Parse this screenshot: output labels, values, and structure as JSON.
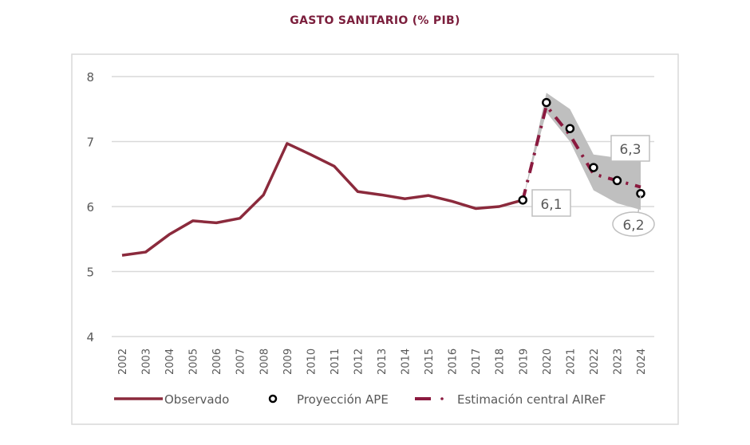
{
  "chart_data": {
    "type": "line",
    "title": "GASTO SANITARIO (% PIB)",
    "xlabel": "",
    "ylabel": "",
    "ylim": [
      4,
      8
    ],
    "yticks": [
      "4",
      "5",
      "6",
      "7",
      "8"
    ],
    "grid": true,
    "legend_position": "bottom",
    "x": [
      "2002",
      "2003",
      "2004",
      "2005",
      "2006",
      "2007",
      "2008",
      "2009",
      "2010",
      "2011",
      "2012",
      "2013",
      "2014",
      "2015",
      "2016",
      "2017",
      "2018",
      "2019",
      "2020",
      "2021",
      "2022",
      "2023",
      "2024"
    ],
    "series": [
      {
        "name": "Observado",
        "style": "solid-line",
        "color": "#8b2a3c",
        "x": [
          "2002",
          "2003",
          "2004",
          "2005",
          "2006",
          "2007",
          "2008",
          "2009",
          "2010",
          "2011",
          "2012",
          "2013",
          "2014",
          "2015",
          "2016",
          "2017",
          "2018",
          "2019"
        ],
        "values": [
          5.25,
          5.3,
          5.57,
          5.78,
          5.75,
          5.82,
          6.18,
          6.97,
          6.8,
          6.62,
          6.23,
          6.18,
          6.12,
          6.17,
          6.08,
          5.97,
          6.0,
          6.1
        ]
      },
      {
        "name": "Proyección APE",
        "style": "open-circle-markers",
        "color": "#000000",
        "x": [
          "2019",
          "2020",
          "2021",
          "2022",
          "2023",
          "2024"
        ],
        "values": [
          6.1,
          7.6,
          7.2,
          6.6,
          6.4,
          6.2
        ]
      },
      {
        "name": "Estimación central AIReF",
        "style": "dash-dot-line",
        "color": "#8b1a3f",
        "x": [
          "2019",
          "2020",
          "2021",
          "2022",
          "2023",
          "2024"
        ],
        "values": [
          6.1,
          7.55,
          7.1,
          6.5,
          6.4,
          6.3
        ]
      }
    ],
    "band": {
      "color": "#bfbfbf",
      "x": [
        "2019",
        "2020",
        "2021",
        "2022",
        "2023",
        "2024"
      ],
      "upper": [
        6.1,
        7.75,
        7.5,
        6.8,
        6.75,
        6.7
      ],
      "lower": [
        6.1,
        7.45,
        7.0,
        6.25,
        6.05,
        5.95
      ]
    },
    "annotations": [
      {
        "text": "6,1",
        "x": "2019",
        "y": 6.1,
        "shape": "box"
      },
      {
        "text": "6,3",
        "x": "2024",
        "y": 6.3,
        "shape": "box"
      },
      {
        "text": "6,2",
        "x": "2024",
        "y": 6.2,
        "shape": "ellipse"
      }
    ]
  }
}
